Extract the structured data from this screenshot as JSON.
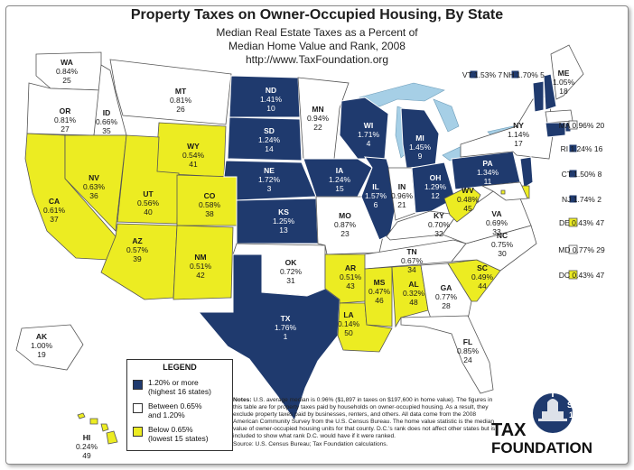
{
  "title": "Property Taxes on Owner-Occupied Housing, By State",
  "subtitle_1": "Median Real Estate Taxes as a Percent of",
  "subtitle_2": "Median Home Value and Rank, 2008",
  "url": "http://www.TaxFoundation.org",
  "colors": {
    "high": "#1f3a6e",
    "middle": "#ffffff",
    "low": "#ecec22",
    "water": "#a6cfe6"
  },
  "states": [
    {
      "abbr": "WA",
      "pct": "0.84%",
      "rank": "25",
      "tier": "middle"
    },
    {
      "abbr": "OR",
      "pct": "0.81%",
      "rank": "27",
      "tier": "middle"
    },
    {
      "abbr": "CA",
      "pct": "0.61%",
      "rank": "37",
      "tier": "low"
    },
    {
      "abbr": "ID",
      "pct": "0.66%",
      "rank": "35",
      "tier": "middle"
    },
    {
      "abbr": "NV",
      "pct": "0.63%",
      "rank": "36",
      "tier": "low"
    },
    {
      "abbr": "MT",
      "pct": "0.81%",
      "rank": "26",
      "tier": "middle"
    },
    {
      "abbr": "WY",
      "pct": "0.54%",
      "rank": "41",
      "tier": "low"
    },
    {
      "abbr": "UT",
      "pct": "0.56%",
      "rank": "40",
      "tier": "low"
    },
    {
      "abbr": "AZ",
      "pct": "0.57%",
      "rank": "39",
      "tier": "low"
    },
    {
      "abbr": "CO",
      "pct": "0.58%",
      "rank": "38",
      "tier": "low"
    },
    {
      "abbr": "NM",
      "pct": "0.51%",
      "rank": "42",
      "tier": "low"
    },
    {
      "abbr": "ND",
      "pct": "1.41%",
      "rank": "10",
      "tier": "high"
    },
    {
      "abbr": "SD",
      "pct": "1.24%",
      "rank": "14",
      "tier": "high"
    },
    {
      "abbr": "NE",
      "pct": "1.72%",
      "rank": "3",
      "tier": "high"
    },
    {
      "abbr": "KS",
      "pct": "1.25%",
      "rank": "13",
      "tier": "high"
    },
    {
      "abbr": "OK",
      "pct": "0.72%",
      "rank": "31",
      "tier": "middle"
    },
    {
      "abbr": "TX",
      "pct": "1.76%",
      "rank": "1",
      "tier": "high"
    },
    {
      "abbr": "MN",
      "pct": "0.94%",
      "rank": "22",
      "tier": "middle"
    },
    {
      "abbr": "IA",
      "pct": "1.24%",
      "rank": "15",
      "tier": "high"
    },
    {
      "abbr": "MO",
      "pct": "0.87%",
      "rank": "23",
      "tier": "middle"
    },
    {
      "abbr": "AR",
      "pct": "0.51%",
      "rank": "43",
      "tier": "low"
    },
    {
      "abbr": "LA",
      "pct": "0.14%",
      "rank": "50",
      "tier": "low"
    },
    {
      "abbr": "WI",
      "pct": "1.71%",
      "rank": "4",
      "tier": "high"
    },
    {
      "abbr": "IL",
      "pct": "1.57%",
      "rank": "6",
      "tier": "high"
    },
    {
      "abbr": "MI",
      "pct": "1.45%",
      "rank": "9",
      "tier": "high"
    },
    {
      "abbr": "IN",
      "pct": "0.96%",
      "rank": "21",
      "tier": "middle"
    },
    {
      "abbr": "OH",
      "pct": "1.29%",
      "rank": "12",
      "tier": "high"
    },
    {
      "abbr": "KY",
      "pct": "0.70%",
      "rank": "32",
      "tier": "middle"
    },
    {
      "abbr": "TN",
      "pct": "0.67%",
      "rank": "34",
      "tier": "middle"
    },
    {
      "abbr": "MS",
      "pct": "0.47%",
      "rank": "46",
      "tier": "low"
    },
    {
      "abbr": "AL",
      "pct": "0.32%",
      "rank": "48",
      "tier": "low"
    },
    {
      "abbr": "GA",
      "pct": "0.77%",
      "rank": "28",
      "tier": "middle"
    },
    {
      "abbr": "FL",
      "pct": "0.85%",
      "rank": "24",
      "tier": "middle"
    },
    {
      "abbr": "SC",
      "pct": "0.49%",
      "rank": "44",
      "tier": "low"
    },
    {
      "abbr": "NC",
      "pct": "0.75%",
      "rank": "30",
      "tier": "middle"
    },
    {
      "abbr": "VA",
      "pct": "0.69%",
      "rank": "33",
      "tier": "middle"
    },
    {
      "abbr": "WV",
      "pct": "0.48%",
      "rank": "45",
      "tier": "low"
    },
    {
      "abbr": "PA",
      "pct": "1.34%",
      "rank": "11",
      "tier": "high"
    },
    {
      "abbr": "NY",
      "pct": "1.14%",
      "rank": "17",
      "tier": "middle"
    },
    {
      "abbr": "VT",
      "pct": "1.53%",
      "rank": "7",
      "tier": "high"
    },
    {
      "abbr": "NH",
      "pct": "1.70%",
      "rank": "5",
      "tier": "high"
    },
    {
      "abbr": "ME",
      "pct": "1.05%",
      "rank": "18",
      "tier": "middle"
    },
    {
      "abbr": "MA",
      "pct": "0.96%",
      "rank": "20",
      "tier": "middle"
    },
    {
      "abbr": "RI",
      "pct": "1.24%",
      "rank": "16",
      "tier": "high"
    },
    {
      "abbr": "CT",
      "pct": "1.50%",
      "rank": "8",
      "tier": "high"
    },
    {
      "abbr": "NJ",
      "pct": "1.74%",
      "rank": "2",
      "tier": "high"
    },
    {
      "abbr": "DE",
      "pct": "0.43%",
      "rank": "47",
      "tier": "low"
    },
    {
      "abbr": "MD",
      "pct": "0.77%",
      "rank": "29",
      "tier": "middle"
    },
    {
      "abbr": "DC",
      "pct": "0.43%",
      "rank": "47",
      "tier": "low"
    },
    {
      "abbr": "AK",
      "pct": "1.00%",
      "rank": "19",
      "tier": "middle"
    },
    {
      "abbr": "HI",
      "pct": "0.24%",
      "rank": "49",
      "tier": "low"
    }
  ],
  "legend": {
    "title": "LEGEND",
    "items": [
      {
        "tier": "high",
        "line1": "1.20% or more",
        "line2": "(highest 16 states)"
      },
      {
        "tier": "middle",
        "line1": "Between 0.65%",
        "line2": "and 1.20%"
      },
      {
        "tier": "low",
        "line1": "Below 0.65%",
        "line2": "(lowest 15 states)"
      }
    ]
  },
  "notes": {
    "label": "Notes:",
    "text": "U.S. average median is 0.96% ($1,897 in taxes on $197,600 in home value). The figures in this table are for property taxes paid by households on owner-occupied housing. As a result, they exclude property taxes paid by businesses, renters, and others. All data come from the 2008 American Community Survey from the U.S. Census Bureau. The home value statistic is the median value of owner-occupied housing units for that county. D.C.'s rank does not affect other states but is included to show what rank D.C. would have if it were ranked.",
    "source": "Source: U.S. Census Bureau; Tax Foundation calculations."
  },
  "logo": {
    "line1": "TAX",
    "line2": "FOUNDATION",
    "badge1": "Since",
    "badge2": "1937"
  }
}
